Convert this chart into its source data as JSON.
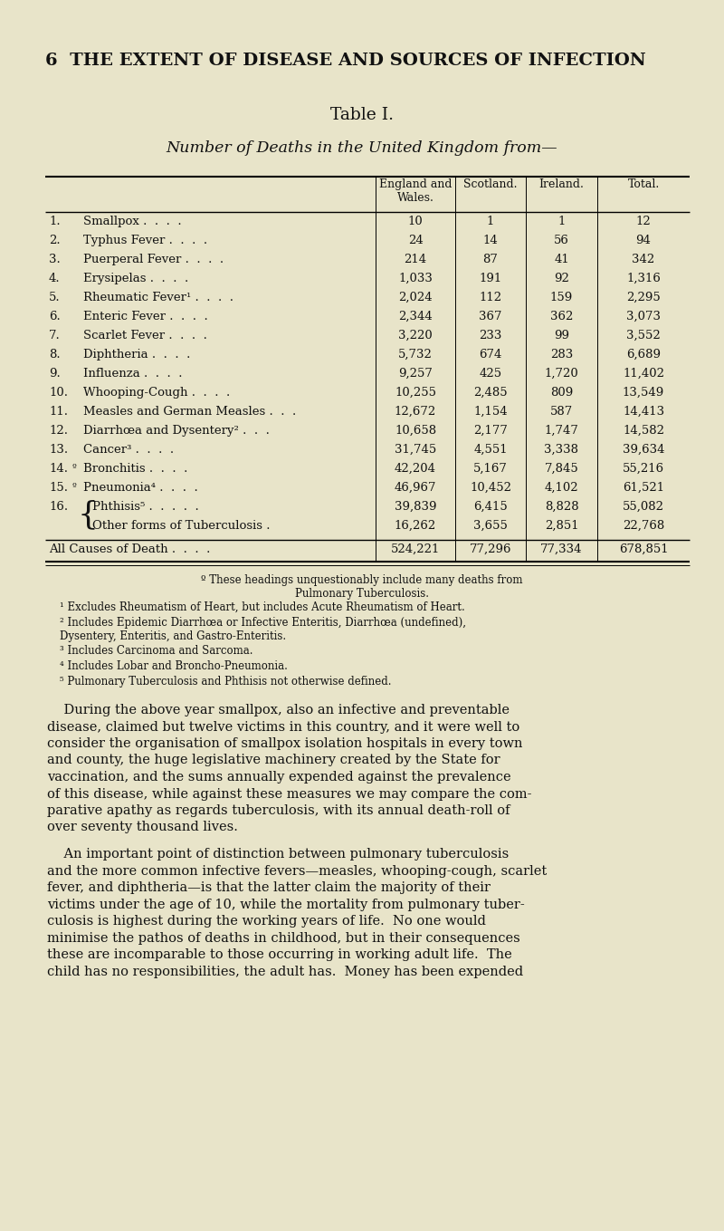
{
  "bg_color": "#e8e4c9",
  "page_header": "6  THE EXTENT OF DISEASE AND SOURCES OF INFECTION",
  "table_title": "Table I.",
  "table_subtitle": "Number of Deaths in the United Kingdom from—",
  "col_headers": [
    "England and\nWales.",
    "Scotland.",
    "Ireland.",
    "Total."
  ],
  "rows": [
    {
      "num": "1.",
      "label": "Smallpox",
      "dots": " .  .  .  .",
      "eng": "10",
      "scot": "1",
      "ire": "1",
      "tot": "12",
      "prefix": ""
    },
    {
      "num": "2.",
      "label": "Typhus Fever",
      "dots": " .  .  .  .",
      "eng": "24",
      "scot": "14",
      "ire": "56",
      "tot": "94",
      "prefix": ""
    },
    {
      "num": "3.",
      "label": "Puerperal Fever",
      "dots": " .  .  .  .",
      "eng": "214",
      "scot": "87",
      "ire": "41",
      "tot": "342",
      "prefix": ""
    },
    {
      "num": "4.",
      "label": "Erysipelas",
      "dots": " .  .  .  .",
      "eng": "1,033",
      "scot": "191",
      "ire": "92",
      "tot": "1,316",
      "prefix": ""
    },
    {
      "num": "5.",
      "label": "Rheumatic Fever¹",
      "dots": " .  .  .  .",
      "eng": "2,024",
      "scot": "112",
      "ire": "159",
      "tot": "2,295",
      "prefix": ""
    },
    {
      "num": "6.",
      "label": "Enteric Fever",
      "dots": " .  .  .  .",
      "eng": "2,344",
      "scot": "367",
      "ire": "362",
      "tot": "3,073",
      "prefix": ""
    },
    {
      "num": "7.",
      "label": "Scarlet Fever",
      "dots": " .  .  .  .",
      "eng": "3,220",
      "scot": "233",
      "ire": "99",
      "tot": "3,552",
      "prefix": ""
    },
    {
      "num": "8.",
      "label": "Diphtheria",
      "dots": " .  .  .  .",
      "eng": "5,732",
      "scot": "674",
      "ire": "283",
      "tot": "6,689",
      "prefix": ""
    },
    {
      "num": "9.",
      "label": "Influenza",
      "dots": " .  .  .  .",
      "eng": "9,257",
      "scot": "425",
      "ire": "1,720",
      "tot": "11,402",
      "prefix": ""
    },
    {
      "num": "10.",
      "label": "Whooping-Cough",
      "dots": " .  .  .  .",
      "eng": "10,255",
      "scot": "2,485",
      "ire": "809",
      "tot": "13,549",
      "prefix": ""
    },
    {
      "num": "11.",
      "label": "Measles and German Measles",
      "dots": " .  .  .",
      "eng": "12,672",
      "scot": "1,154",
      "ire": "587",
      "tot": "14,413",
      "prefix": ""
    },
    {
      "num": "12.",
      "label": "Diarrhœa and Dysentery²",
      "dots": " .  .  .",
      "eng": "10,658",
      "scot": "2,177",
      "ire": "1,747",
      "tot": "14,582",
      "prefix": ""
    },
    {
      "num": "13.",
      "label": "Cancer³",
      "dots": " .  .  .  .",
      "eng": "31,745",
      "scot": "4,551",
      "ire": "3,338",
      "tot": "39,634",
      "prefix": ""
    },
    {
      "num": "14.",
      "label": "Bronchitis",
      "dots": " .  .  .  .",
      "eng": "42,204",
      "scot": "5,167",
      "ire": "7,845",
      "tot": "55,216",
      "prefix": "º"
    },
    {
      "num": "15.",
      "label": "Pneumonia⁴",
      "dots": " .  .  .  .",
      "eng": "46,967",
      "scot": "10,452",
      "ire": "4,102",
      "tot": "61,521",
      "prefix": "º"
    },
    {
      "num": "16.",
      "label_a": "Phthisis⁵",
      "dots_a": " .  .  .  .  .",
      "label_b": "Other forms of Tuberculosis",
      "dots_b": " .",
      "eng_a": "39,839",
      "scot_a": "6,415",
      "ire_a": "8,828",
      "tot_a": "55,082",
      "eng_b": "16,262",
      "scot_b": "3,655",
      "ire_b": "2,851",
      "tot_b": "22,768",
      "prefix": "",
      "split": true
    }
  ],
  "footer_label": "All Causes of Death",
  "footer_dots": " .  .  .  .",
  "footer_eng": "524,221",
  "footer_scot": "77,296",
  "footer_ire": "77,334",
  "footer_tot": "678,851",
  "footnote_star": "º These headings unquestionably include many deaths from\nPulmonary Tuberculosis.",
  "footnotes": [
    "¹ Excludes Rheumatism of Heart, but includes Acute Rheumatism of Heart.",
    "² Includes Epidemic Diarrhœa or Infective Enteritis, Diarrhœa (undefined),\nDysentery, Enteritis, and Gastro-Enteritis.",
    "³ Includes Carcinoma and Sarcoma.",
    "⁴ Includes Lobar and Broncho-Pneumonia.",
    "⁵ Pulmonary Tuberculosis and Phthisis not otherwise defined."
  ],
  "body_paragraphs": [
    [
      "    During the above year smallpox, also an infective and preventable",
      "disease, claimed but twelve victims in this country, and it were well to",
      "consider the organisation of smallpox isolation hospitals in every town",
      "and county, the huge legislative machinery created by the State for",
      "vaccination, and the sums annually expended against the prevalence",
      "of this disease, while against these measures we may compare the com-",
      "parative apathy as regards tuberculosis, with its annual death-roll of",
      "over seventy thousand lives."
    ],
    [
      "    An important point of distinction between pulmonary tuberculosis",
      "and the more common infective fevers—measles, whooping-cough, scarlet",
      "fever, and diphtheria—is that the latter claim the majority of their",
      "victims under the age of 10, while the mortality from pulmonary tuber-",
      "culosis is highest during the working years of life.  No one would",
      "minimise the pathos of deaths in childhood, but in their consequences",
      "these are incomparable to those occurring in working adult life.  The",
      "child has no responsibilities, the adult has.  Money has been expended"
    ]
  ]
}
